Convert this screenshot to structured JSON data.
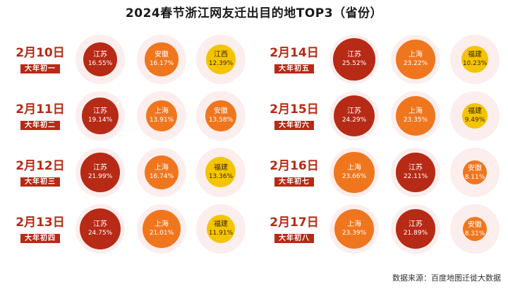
{
  "title": "2024春节浙江网友迁出目的地TOP3（省份）",
  "source": "数据来源：百度地图迁徙大数据",
  "colors": {
    "江苏": "#b72a16",
    "安徽": "#f0761e",
    "上海": "#f0761e",
    "江西": "#f5c400",
    "福建": "#f5c400",
    "date_text": "#b72a16"
  },
  "chart_data": {
    "type": "bubble-grid",
    "title": "2024春节浙江网友迁出目的地TOP3（省份）",
    "days": [
      {
        "date": "2月10日",
        "lunar": "大年初一",
        "top3": [
          {
            "province": "江苏",
            "share": "16.55%",
            "rank": 1
          },
          {
            "province": "安徽",
            "share": "16.17%",
            "rank": 2
          },
          {
            "province": "江西",
            "share": "12.39%",
            "rank": 3
          }
        ]
      },
      {
        "date": "2月11日",
        "lunar": "大年初二",
        "top3": [
          {
            "province": "江苏",
            "share": "19.14%",
            "rank": 1
          },
          {
            "province": "上海",
            "share": "13.91%",
            "rank": 2
          },
          {
            "province": "安徽",
            "share": "13.58%",
            "rank": 3
          }
        ]
      },
      {
        "date": "2月12日",
        "lunar": "大年初三",
        "top3": [
          {
            "province": "江苏",
            "share": "21.99%",
            "rank": 1
          },
          {
            "province": "上海",
            "share": "16.74%",
            "rank": 2
          },
          {
            "province": "福建",
            "share": "13.36%",
            "rank": 3
          }
        ]
      },
      {
        "date": "2月13日",
        "lunar": "大年初四",
        "top3": [
          {
            "province": "江苏",
            "share": "24.75%",
            "rank": 1
          },
          {
            "province": "上海",
            "share": "21.01%",
            "rank": 2
          },
          {
            "province": "福建",
            "share": "11.91%",
            "rank": 3
          }
        ]
      },
      {
        "date": "2月14日",
        "lunar": "大年初五",
        "top3": [
          {
            "province": "江苏",
            "share": "25.52%",
            "rank": 1
          },
          {
            "province": "上海",
            "share": "23.22%",
            "rank": 2
          },
          {
            "province": "福建",
            "share": "10.23%",
            "rank": 3
          }
        ]
      },
      {
        "date": "2月15日",
        "lunar": "大年初六",
        "top3": [
          {
            "province": "江苏",
            "share": "24.29%",
            "rank": 1
          },
          {
            "province": "上海",
            "share": "23.35%",
            "rank": 2
          },
          {
            "province": "福建",
            "share": "9.49%",
            "rank": 3
          }
        ]
      },
      {
        "date": "2月16日",
        "lunar": "大年初七",
        "top3": [
          {
            "province": "上海",
            "share": "23.66%",
            "rank": 1
          },
          {
            "province": "江苏",
            "share": "22.11%",
            "rank": 2
          },
          {
            "province": "安徽",
            "share": "8.11%",
            "rank": 3
          }
        ]
      },
      {
        "date": "2月17日",
        "lunar": "大年初八",
        "top3": [
          {
            "province": "上海",
            "share": "23.39%",
            "rank": 1
          },
          {
            "province": "江苏",
            "share": "21.89%",
            "rank": 2
          },
          {
            "province": "安徽",
            "share": "8.31%",
            "rank": 3
          }
        ]
      }
    ]
  }
}
